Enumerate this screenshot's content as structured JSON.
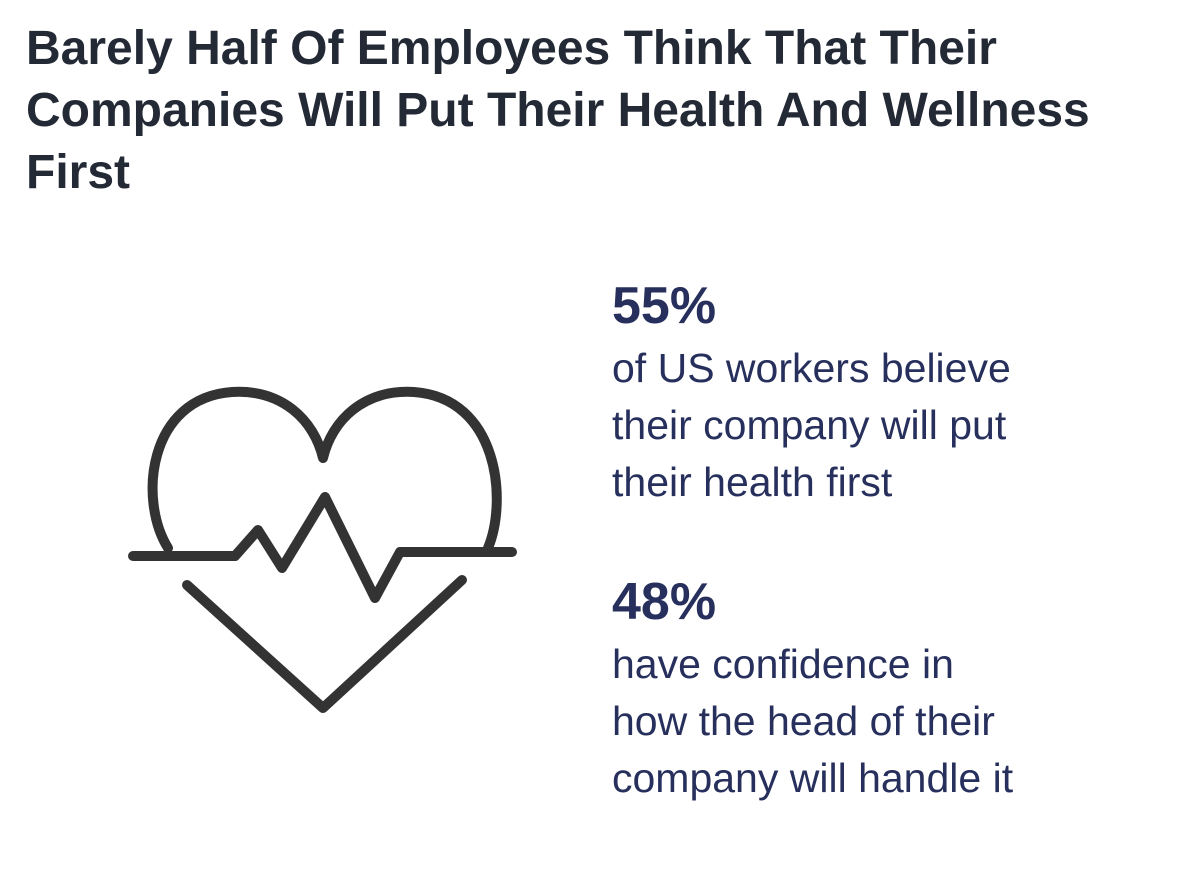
{
  "header": {
    "title": "Barely Half Of Employees Think That Their Companies Will Put Their Health And Wellness First"
  },
  "stats": [
    {
      "value": "55%",
      "lines": [
        "of US workers believe",
        "their company will put",
        "their health first"
      ]
    },
    {
      "value": "48%",
      "lines": [
        "have confidence in",
        "how the head of their",
        "company will handle it"
      ]
    }
  ]
}
